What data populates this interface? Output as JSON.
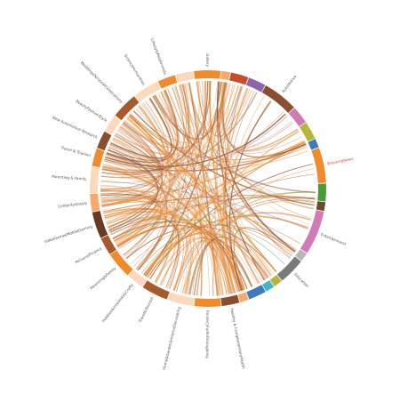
{
  "diagram": {
    "type": "chord",
    "groups": [
      {
        "label": "Gallery",
        "color": "#f08a2a",
        "weight": 3
      },
      {
        "label": "",
        "color": "#f7a96a",
        "weight": 1
      },
      {
        "label": "",
        "color": "#c44e2a",
        "weight": 2
      },
      {
        "label": "",
        "color": "#8f63a8",
        "weight": 2
      },
      {
        "label": "AutoMotive",
        "color": "#8a4d2f",
        "weight": 4
      },
      {
        "label": "",
        "color": "#d17ab4",
        "weight": 2
      },
      {
        "label": "",
        "color": "#b5b63b",
        "weight": 2
      },
      {
        "label": "",
        "color": "#3a7bbd",
        "weight": 1
      },
      {
        "label": "BreakingNews",
        "color": "#f08a2a",
        "weight": 4
      },
      {
        "label": "",
        "color": "#4a9a3a",
        "weight": 2
      },
      {
        "label": "",
        "color": "#6b4a2e",
        "weight": 1
      },
      {
        "label": "Entertainment",
        "color": "#d17ab4",
        "weight": 5
      },
      {
        "label": "",
        "color": "#b8b8b8",
        "weight": 1
      },
      {
        "label": "Education",
        "color": "#7a7a7a",
        "weight": 3
      },
      {
        "label": "",
        "color": "#b5b63b",
        "weight": 1
      },
      {
        "label": "",
        "color": "#46b4c9",
        "weight": 1
      },
      {
        "label": "",
        "color": "#3a7bbd",
        "weight": 2
      },
      {
        "label": "",
        "color": "#f7a96a",
        "weight": 1
      },
      {
        "label": "Healthy & ComplementaryHealth",
        "color": "#8a4d2f",
        "weight": 2
      },
      {
        "label": "FoodPhotographyCooking",
        "color": "#f08a2a",
        "weight": 3
      },
      {
        "label": "Home&Garden&InteriorDecorating",
        "color": "#fbd9bd",
        "weight": 3
      },
      {
        "label": "Travel&Tourism",
        "color": "#a85a2c",
        "weight": 3
      },
      {
        "label": "Hobbies&Interests&Crafts",
        "color": "#fbd9bd",
        "weight": 2
      },
      {
        "label": "Parenting&Family",
        "color": "#f08a2a",
        "weight": 3
      },
      {
        "label": "PersonalFinance",
        "color": "#a85a2c",
        "weight": 2
      },
      {
        "label": "VideoGamesMobileGaming",
        "color": "#6b3a1e",
        "weight": 3
      },
      {
        "label": "CelebrityGossip",
        "color": "#f7a96a",
        "weight": 2
      },
      {
        "label": "Parenting & Family",
        "color": "#fbd9bd",
        "weight": 3
      },
      {
        "label": "Travel & Tourism",
        "color": "#f08a2a",
        "weight": 2
      },
      {
        "label": "New Automotive Research",
        "color": "#8a4d2f",
        "weight": 2
      },
      {
        "label": "BeautyFashionStyle",
        "color": "#fbd9bd",
        "weight": 2
      },
      {
        "label": "WeddingsPersonalCelebrations",
        "color": "#a85a2c",
        "weight": 3
      },
      {
        "label": "ScienceHumanities",
        "color": "#fbd9bd",
        "weight": 3
      },
      {
        "label": "LifestylePetsAnimals",
        "color": "#f08a2a",
        "weight": 2
      },
      {
        "label": "",
        "color": "#fbd9bd",
        "weight": 2
      }
    ],
    "link_colors": [
      "#ef8a2a",
      "#f3a15a",
      "#c06a2e",
      "#8a4d2f",
      "#d9a06a"
    ],
    "highlight_link_colors": [
      "#4a9a3a",
      "#8f63a8",
      "#d17ab4"
    ]
  }
}
